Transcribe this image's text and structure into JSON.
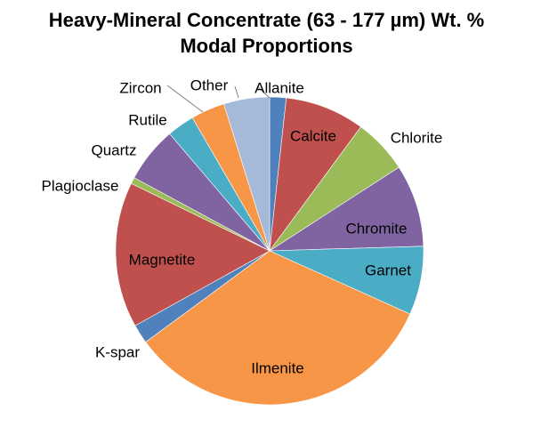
{
  "chart_data": {
    "type": "pie",
    "title": "Heavy-Mineral Concentrate (63 - 177 µm) Wt. %",
    "subtitle": "Modal Proportions",
    "start_angle_deg": 0,
    "direction": "clockwise",
    "slices": [
      {
        "label": "Allanite",
        "value": 1.8,
        "color": "#4f81bd"
      },
      {
        "label": "Calcite",
        "value": 8.7,
        "color": "#c0504d"
      },
      {
        "label": "Chlorite",
        "value": 6.0,
        "color": "#9bbb59"
      },
      {
        "label": "Chromite",
        "value": 9.0,
        "color": "#8064a2"
      },
      {
        "label": "Garnet",
        "value": 7.5,
        "color": "#4bacc6"
      },
      {
        "label": "Ilmenite",
        "value": 34.5,
        "color": "#f79646"
      },
      {
        "label": "K-spar",
        "value": 2.1,
        "color": "#4f81bd"
      },
      {
        "label": "Magnetite",
        "value": 15.9,
        "color": "#c0504d"
      },
      {
        "label": "Plagioclase",
        "value": 0.7,
        "color": "#9bbb59"
      },
      {
        "label": "Quartz",
        "value": 6.1,
        "color": "#8064a2"
      },
      {
        "label": "Rutile",
        "value": 3.0,
        "color": "#4bacc6"
      },
      {
        "label": "Zircon",
        "value": 3.7,
        "color": "#f79646"
      },
      {
        "label": "Other",
        "value": 5.0,
        "color": "#a5b9d9"
      }
    ]
  }
}
